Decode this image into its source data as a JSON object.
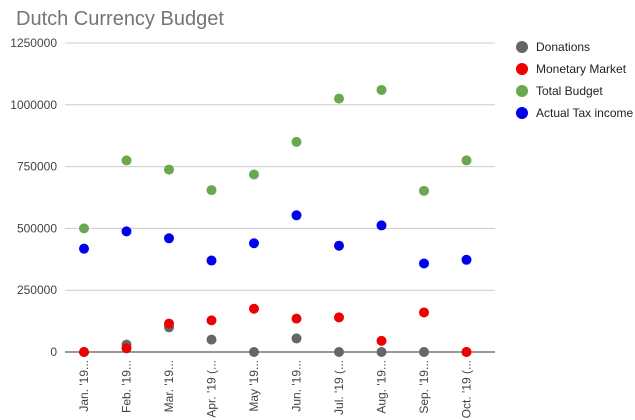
{
  "chart_data": {
    "type": "scatter",
    "title": "Dutch Currency Budget",
    "categories": [
      "Jan. '19...",
      "Feb. '19...",
      "Mar. '19...",
      "Apr. '19 (...",
      "May '19...",
      "Jun. '19...",
      "Jul. '19 (...",
      "Aug. '19...",
      "Sep. '19...",
      "Oct. '19 (..."
    ],
    "ylim": [
      0,
      1250000
    ],
    "yticks": [
      0,
      250000,
      500000,
      750000,
      1000000,
      1250000
    ],
    "ytick_labels": [
      "0",
      "250000",
      "500000",
      "750000",
      "1000000",
      "1250000"
    ],
    "grid": true,
    "legend_position": "right",
    "series": [
      {
        "name": "Donations",
        "color": "#666666",
        "values": [
          0,
          30000,
          100000,
          50000,
          0,
          55000,
          0,
          0,
          0,
          0
        ]
      },
      {
        "name": "Monetary Market",
        "color": "#ee0000",
        "values": [
          0,
          15000,
          115000,
          128000,
          175000,
          135000,
          140000,
          45000,
          160000,
          0
        ]
      },
      {
        "name": "Total Budget",
        "color": "#6aa84f",
        "values": [
          500000,
          775000,
          738000,
          655000,
          718000,
          850000,
          1025000,
          1060000,
          652000,
          775000
        ]
      },
      {
        "name": "Actual Tax income",
        "color": "#0000ee",
        "values": [
          418000,
          488000,
          460000,
          370000,
          440000,
          553000,
          430000,
          512000,
          358000,
          373000
        ]
      }
    ]
  }
}
